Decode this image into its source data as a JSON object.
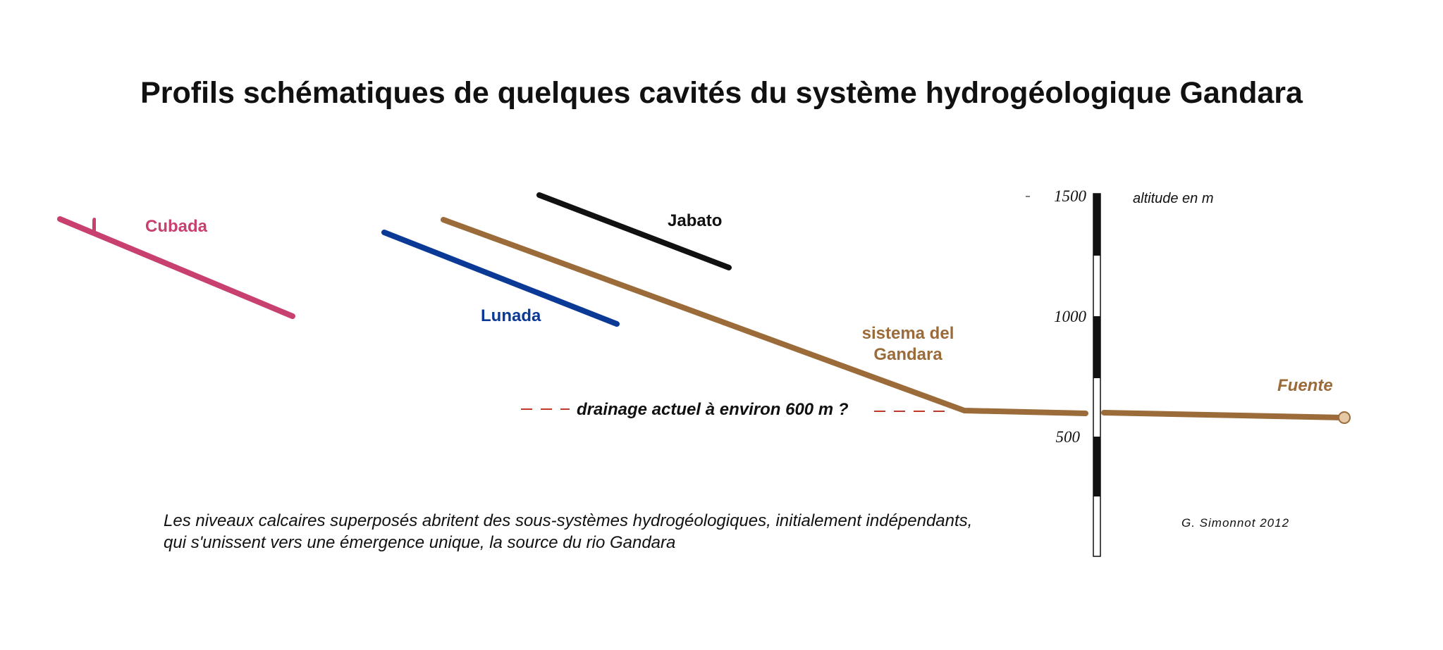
{
  "title": "Profils schématiques de quelques cavités du système hydrogéologique Gandara",
  "caves": {
    "cubada": {
      "label": "Cubada",
      "color": "#c8406f"
    },
    "lunada": {
      "label": "Lunada",
      "color": "#0b3a96"
    },
    "jabato": {
      "label": "Jabato",
      "color": "#111111"
    },
    "gandara": {
      "label_line1": "sistema del",
      "label_line2": "Gandara",
      "color": "#9b6b3a"
    },
    "fuente": {
      "label": "Fuente",
      "color": "#9b6b3a"
    }
  },
  "drainage": {
    "label": "drainage actuel à environ 600 m ?",
    "color": "#c0392b"
  },
  "scale": {
    "unit_label": "altitude en m",
    "ticks": [
      {
        "value": 1500,
        "label": "1500"
      },
      {
        "value": 1000,
        "label": "1000"
      },
      {
        "value": 500,
        "label": "500"
      }
    ]
  },
  "caption": {
    "line1": "Les niveaux calcaires superposés abritent des sous-systèmes hydrogéologiques, initialement indépendants,",
    "line2": "qui s'unissent vers une émergence unique, la source du rio Gandara"
  },
  "signature": "G. Simonnot  2012"
}
